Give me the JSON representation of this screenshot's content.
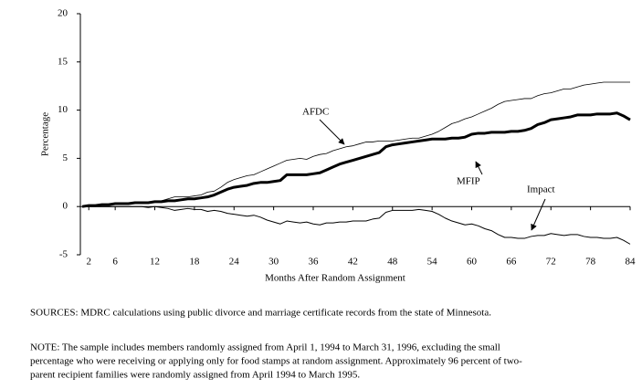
{
  "chart_data": {
    "type": "line",
    "y_label": "Percentage",
    "x_label": "Months After Random Assignment",
    "xlim": [
      1,
      84
    ],
    "ylim": [
      -5,
      20
    ],
    "xticks": [
      2,
      6,
      12,
      18,
      24,
      30,
      36,
      42,
      48,
      54,
      60,
      66,
      72,
      78,
      84
    ],
    "yticks": [
      20,
      15,
      10,
      5,
      0,
      -5
    ],
    "x": [
      1,
      2,
      3,
      4,
      5,
      6,
      7,
      8,
      9,
      10,
      11,
      12,
      13,
      14,
      15,
      16,
      17,
      18,
      19,
      20,
      21,
      22,
      23,
      24,
      25,
      26,
      27,
      28,
      29,
      30,
      31,
      32,
      33,
      34,
      35,
      36,
      37,
      38,
      39,
      40,
      41,
      42,
      43,
      44,
      45,
      46,
      47,
      48,
      49,
      50,
      51,
      52,
      53,
      54,
      55,
      56,
      57,
      58,
      59,
      60,
      61,
      62,
      63,
      64,
      65,
      66,
      67,
      68,
      69,
      70,
      71,
      72,
      73,
      74,
      75,
      76,
      77,
      78,
      79,
      80,
      81,
      82,
      83,
      84
    ],
    "series": [
      {
        "name": "AFDC",
        "color": "#000000",
        "line_width": 0.8,
        "values": [
          0,
          0.1,
          0.1,
          0.2,
          0.2,
          0.3,
          0.3,
          0.3,
          0.4,
          0.4,
          0.5,
          0.5,
          0.6,
          0.8,
          1.0,
          1.0,
          1.0,
          1.1,
          1.2,
          1.5,
          1.6,
          2.0,
          2.5,
          2.8,
          3.0,
          3.2,
          3.3,
          3.6,
          3.9,
          4.2,
          4.5,
          4.8,
          4.9,
          5.0,
          4.9,
          5.2,
          5.4,
          5.5,
          5.8,
          6.0,
          6.2,
          6.3,
          6.5,
          6.7,
          6.7,
          6.8,
          6.8,
          6.8,
          6.9,
          7.0,
          7.1,
          7.1,
          7.3,
          7.5,
          7.8,
          8.2,
          8.6,
          8.8,
          9.1,
          9.3,
          9.6,
          9.9,
          10.2,
          10.6,
          10.9,
          11.0,
          11.1,
          11.2,
          11.2,
          11.5,
          11.7,
          11.8,
          12.0,
          12.2,
          12.2,
          12.4,
          12.6,
          12.7,
          12.8,
          12.9,
          12.9,
          12.9,
          12.9,
          12.9
        ]
      },
      {
        "name": "MFIP",
        "color": "#000000",
        "line_width": 3,
        "values": [
          0,
          0.1,
          0.1,
          0.2,
          0.2,
          0.3,
          0.3,
          0.3,
          0.4,
          0.4,
          0.4,
          0.5,
          0.5,
          0.6,
          0.6,
          0.7,
          0.8,
          0.8,
          0.9,
          1.0,
          1.2,
          1.5,
          1.8,
          2.0,
          2.1,
          2.2,
          2.4,
          2.5,
          2.5,
          2.6,
          2.7,
          3.3,
          3.3,
          3.3,
          3.3,
          3.4,
          3.5,
          3.8,
          4.1,
          4.4,
          4.6,
          4.8,
          5.0,
          5.2,
          5.4,
          5.6,
          6.2,
          6.4,
          6.5,
          6.6,
          6.7,
          6.8,
          6.9,
          7.0,
          7.0,
          7.0,
          7.1,
          7.1,
          7.2,
          7.5,
          7.6,
          7.6,
          7.7,
          7.7,
          7.7,
          7.8,
          7.8,
          7.9,
          8.1,
          8.5,
          8.7,
          9.0,
          9.1,
          9.2,
          9.3,
          9.5,
          9.5,
          9.5,
          9.6,
          9.6,
          9.6,
          9.7,
          9.4,
          9.0
        ]
      },
      {
        "name": "Impact",
        "color": "#000000",
        "line_width": 1,
        "values": [
          0,
          0,
          0,
          0,
          0,
          0,
          0,
          0,
          0,
          0,
          -0.1,
          0,
          -0.1,
          -0.2,
          -0.4,
          -0.3,
          -0.2,
          -0.3,
          -0.3,
          -0.5,
          -0.4,
          -0.5,
          -0.7,
          -0.8,
          -0.9,
          -1.0,
          -0.9,
          -1.1,
          -1.4,
          -1.6,
          -1.8,
          -1.5,
          -1.6,
          -1.7,
          -1.6,
          -1.8,
          -1.9,
          -1.7,
          -1.7,
          -1.6,
          -1.6,
          -1.5,
          -1.5,
          -1.5,
          -1.3,
          -1.2,
          -0.6,
          -0.4,
          -0.4,
          -0.4,
          -0.4,
          -0.3,
          -0.4,
          -0.5,
          -0.8,
          -1.2,
          -1.5,
          -1.7,
          -1.9,
          -1.8,
          -2.0,
          -2.3,
          -2.5,
          -2.9,
          -3.2,
          -3.2,
          -3.3,
          -3.3,
          -3.1,
          -3.0,
          -3.0,
          -2.8,
          -2.9,
          -3.0,
          -2.9,
          -2.9,
          -3.1,
          -3.2,
          -3.2,
          -3.3,
          -3.3,
          -3.2,
          -3.5,
          -3.9
        ]
      }
    ],
    "sources": "SOURCES:  MDRC calculations using public divorce and marriage certificate records from the state of Minnesota.",
    "note": [
      "NOTE:  The sample includes members randomly assigned from April 1, 1994 to March 31, 1996, excluding the small",
      "percentage who were receiving or applying only for food stamps at random assignment.  Approximately 96 percent of two-",
      "parent recipient families were randomly assigned from April 1994 to March 1995."
    ]
  }
}
